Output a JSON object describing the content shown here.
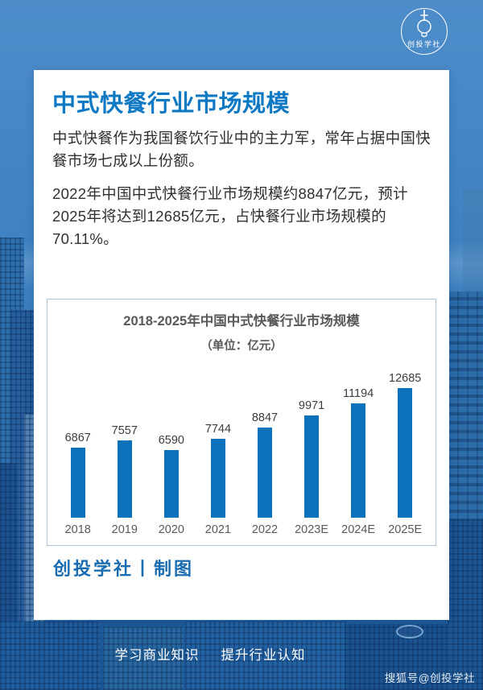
{
  "logo": {
    "name": "创投学社"
  },
  "card": {
    "title": "中式快餐行业市场规模",
    "paragraphs": [
      "中式快餐作为我国餐饮行业中的主力军，常年占据中国快餐市场七成以上份额。",
      "2022年中国中式快餐行业市场规模约8847亿元，预计2025年将达到12685亿元，占快餐行业市场规模的70.11%。"
    ],
    "credit": "创投学社丨制图"
  },
  "chart_data": {
    "type": "bar",
    "title": "2018-2025年中国中式快餐行业市场规模",
    "subtitle": "（单位：亿元）",
    "categories": [
      "2018",
      "2019",
      "2020",
      "2021",
      "2022",
      "2023E",
      "2024E",
      "2025E"
    ],
    "values": [
      6867,
      7557,
      6590,
      7744,
      8847,
      9971,
      11194,
      12685
    ],
    "unit": "亿元",
    "ylim": [
      0,
      12685
    ],
    "grid": false,
    "legend": "none",
    "value_labels": true,
    "bar_color": "#0a71ba"
  },
  "footer": {
    "slogan_left": "学习商业知识",
    "slogan_right": "提升行业认知",
    "watermark": "搜狐号@创投学社"
  },
  "colors": {
    "accent_blue": "#0d78c3",
    "bar_blue": "#0a71ba",
    "chart_border": "#a9c7e2",
    "chart_text": "#595959",
    "credit_blue": "#1a6cb0",
    "background_blue": "#3e80c0"
  }
}
